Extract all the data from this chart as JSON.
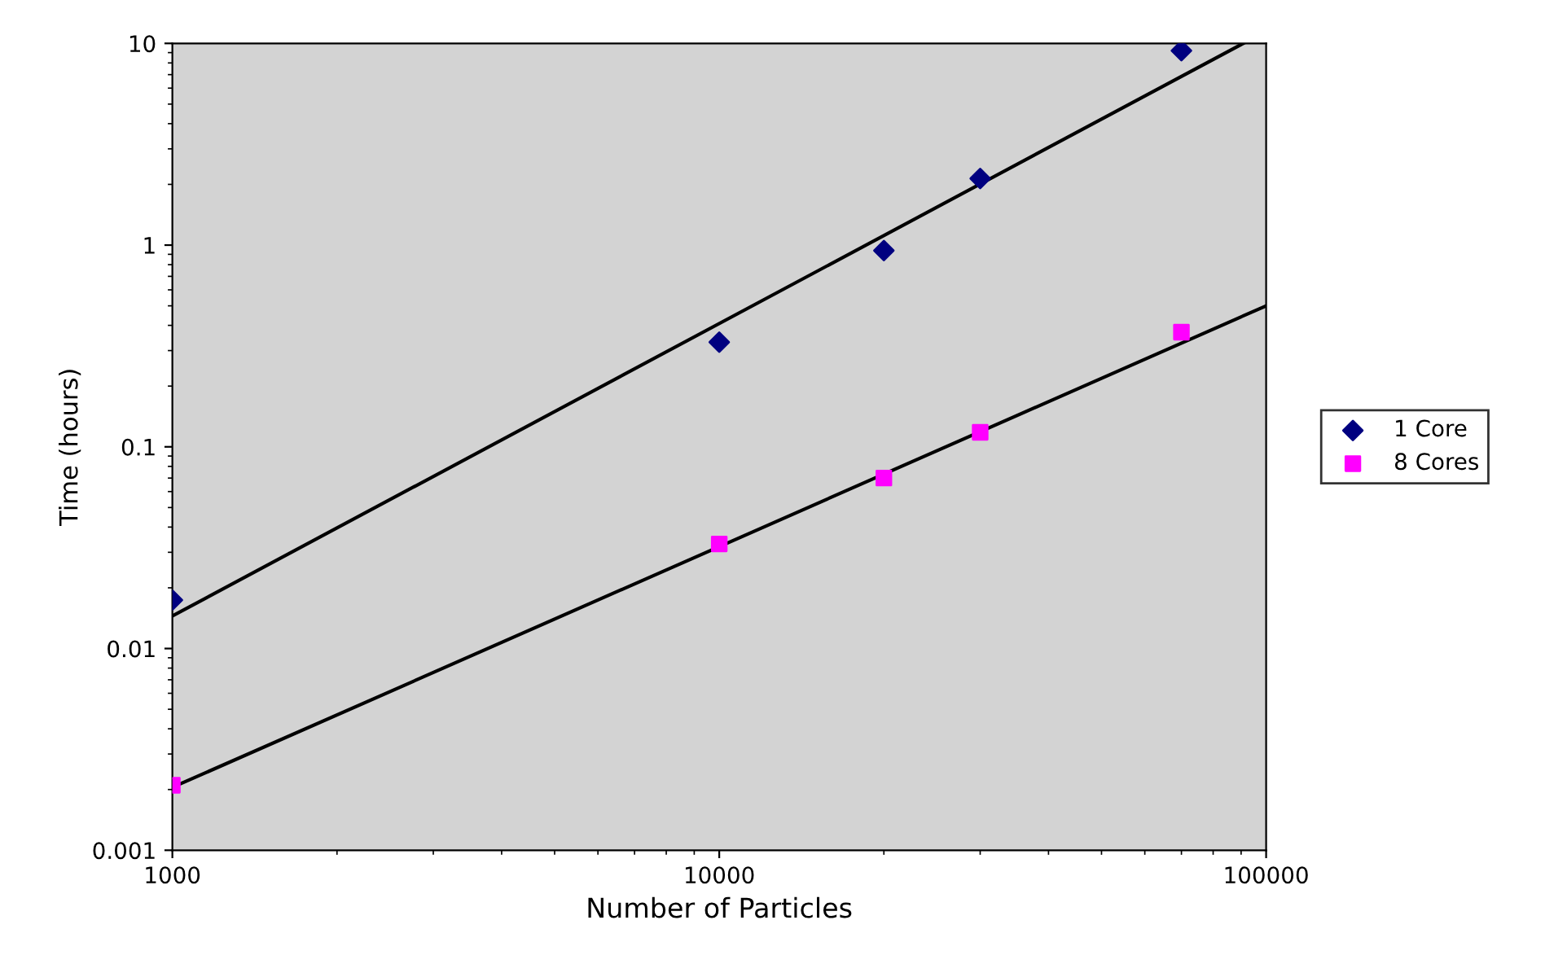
{
  "chart_data": {
    "type": "scatter",
    "xlabel": "Number of Particles",
    "ylabel": "Time (hours)",
    "log": "xy",
    "xlim": [
      1000,
      100000
    ],
    "xticks": [
      1000,
      10000,
      100000
    ],
    "ylim": [
      0.001,
      10
    ],
    "yticks": [
      0.001,
      0.01,
      0.1,
      1,
      10
    ],
    "grid": false,
    "legend": "right",
    "series": [
      {
        "name": "1 Core",
        "marker": "diamond",
        "color": "#000080",
        "x": [
          1000,
          10000,
          20000,
          30000,
          70000
        ],
        "values": [
          0.0174,
          0.33,
          0.94,
          2.14,
          9.2
        ]
      },
      {
        "name": "8 Cores",
        "marker": "square",
        "color": "#ff00ff",
        "x": [
          1000,
          10000,
          20000,
          30000,
          70000
        ],
        "values": [
          0.0021,
          0.033,
          0.07,
          0.118,
          0.37
        ]
      },
      {
        "type": "line",
        "color": "#000000",
        "x": [
          1000,
          90800
        ],
        "values": [
          0.0145,
          10
        ]
      },
      {
        "type": "line",
        "color": "#000000",
        "x": [
          1000,
          100000
        ],
        "values": [
          0.00205,
          0.5
        ]
      }
    ]
  }
}
